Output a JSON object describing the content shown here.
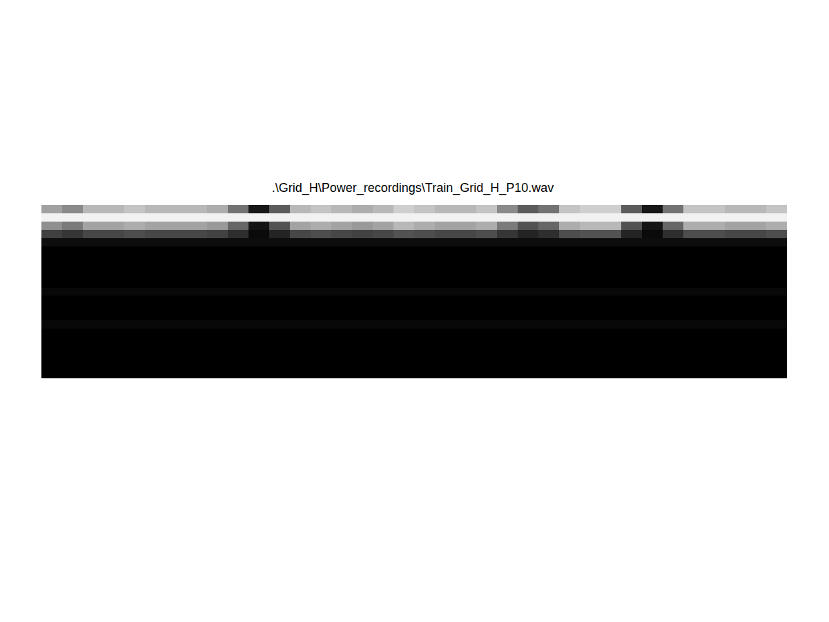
{
  "chart_data": {
    "type": "heatmap",
    "title": ".\\Grid_H\\Power_recordings\\Train_Grid_H_P10.wav",
    "tick_labels": false,
    "zlim": [
      0,
      1
    ],
    "values": [
      [
        0.63,
        0.54,
        0.72,
        0.72,
        0.77,
        0.72,
        0.72,
        0.72,
        0.68,
        0.45,
        0.09,
        0.36,
        0.72,
        0.77,
        0.72,
        0.68,
        0.72,
        0.81,
        0.77,
        0.72,
        0.72,
        0.77,
        0.54,
        0.36,
        0.45,
        0.77,
        0.81,
        0.81,
        0.36,
        0.09,
        0.45,
        0.77,
        0.77,
        0.72,
        0.72,
        0.77
      ],
      [
        0.95,
        0.95,
        0.95,
        0.95,
        0.95,
        0.95,
        0.95,
        0.95,
        0.95,
        0.95,
        0.95,
        0.95,
        0.95,
        0.95,
        0.95,
        0.95,
        0.95,
        0.95,
        0.95,
        0.95,
        0.95,
        0.95,
        0.95,
        0.95,
        0.95,
        0.95,
        0.95,
        0.95,
        0.95,
        0.95,
        0.95,
        0.95,
        0.95,
        0.95,
        0.95,
        0.95
      ],
      [
        0.56,
        0.48,
        0.64,
        0.64,
        0.68,
        0.64,
        0.64,
        0.64,
        0.6,
        0.4,
        0.08,
        0.32,
        0.64,
        0.68,
        0.64,
        0.6,
        0.64,
        0.72,
        0.68,
        0.64,
        0.64,
        0.68,
        0.48,
        0.32,
        0.4,
        0.68,
        0.72,
        0.72,
        0.32,
        0.08,
        0.4,
        0.68,
        0.68,
        0.64,
        0.64,
        0.68
      ],
      [
        0.25,
        0.21,
        0.28,
        0.28,
        0.3,
        0.28,
        0.28,
        0.28,
        0.26,
        0.18,
        0.04,
        0.14,
        0.28,
        0.3,
        0.28,
        0.26,
        0.28,
        0.32,
        0.3,
        0.28,
        0.28,
        0.3,
        0.21,
        0.14,
        0.18,
        0.3,
        0.32,
        0.32,
        0.14,
        0.04,
        0.18,
        0.3,
        0.3,
        0.28,
        0.28,
        0.3
      ],
      [
        0.05,
        0.05,
        0.05,
        0.05,
        0.05,
        0.05,
        0.05,
        0.05,
        0.05,
        0.05,
        0.05,
        0.05,
        0.05,
        0.05,
        0.05,
        0.05,
        0.05,
        0.05,
        0.05,
        0.05,
        0.05,
        0.05,
        0.05,
        0.05,
        0.05,
        0.05,
        0.05,
        0.05,
        0.05,
        0.05,
        0.05,
        0.05,
        0.05,
        0.05,
        0.05,
        0.05
      ],
      [
        0,
        0,
        0,
        0,
        0,
        0,
        0,
        0,
        0,
        0,
        0,
        0,
        0,
        0,
        0,
        0,
        0,
        0,
        0,
        0,
        0,
        0,
        0,
        0,
        0,
        0,
        0,
        0,
        0,
        0,
        0,
        0,
        0,
        0,
        0,
        0
      ],
      [
        0,
        0,
        0,
        0,
        0,
        0,
        0,
        0,
        0,
        0,
        0,
        0,
        0,
        0,
        0,
        0,
        0,
        0,
        0,
        0,
        0,
        0,
        0,
        0,
        0,
        0,
        0,
        0,
        0,
        0,
        0,
        0,
        0,
        0,
        0,
        0
      ],
      [
        0,
        0,
        0,
        0,
        0,
        0,
        0,
        0,
        0,
        0,
        0,
        0,
        0,
        0,
        0,
        0,
        0,
        0,
        0,
        0,
        0,
        0,
        0,
        0,
        0,
        0,
        0,
        0,
        0,
        0,
        0,
        0,
        0,
        0,
        0,
        0
      ],
      [
        0,
        0,
        0,
        0,
        0,
        0,
        0,
        0,
        0,
        0,
        0,
        0,
        0,
        0,
        0,
        0,
        0,
        0,
        0,
        0,
        0,
        0,
        0,
        0,
        0,
        0,
        0,
        0,
        0,
        0,
        0,
        0,
        0,
        0,
        0,
        0
      ],
      [
        0,
        0,
        0,
        0,
        0,
        0,
        0,
        0,
        0,
        0,
        0,
        0,
        0,
        0,
        0,
        0,
        0,
        0,
        0,
        0,
        0,
        0,
        0,
        0,
        0,
        0,
        0,
        0,
        0,
        0,
        0,
        0,
        0,
        0,
        0,
        0
      ],
      [
        0.03,
        0.03,
        0.03,
        0.03,
        0.03,
        0.03,
        0.03,
        0.03,
        0.03,
        0.03,
        0.03,
        0.03,
        0.03,
        0.03,
        0.03,
        0.03,
        0.03,
        0.03,
        0.03,
        0.03,
        0.03,
        0.03,
        0.03,
        0.03,
        0.03,
        0.03,
        0.03,
        0.03,
        0.03,
        0.03,
        0.03,
        0.03,
        0.03,
        0.03,
        0.03,
        0.03
      ],
      [
        0,
        0,
        0,
        0,
        0,
        0,
        0,
        0,
        0,
        0,
        0,
        0,
        0,
        0,
        0,
        0,
        0,
        0,
        0,
        0,
        0,
        0,
        0,
        0,
        0,
        0,
        0,
        0,
        0,
        0,
        0,
        0,
        0,
        0,
        0,
        0
      ],
      [
        0,
        0,
        0,
        0,
        0,
        0,
        0,
        0,
        0,
        0,
        0,
        0,
        0,
        0,
        0,
        0,
        0,
        0,
        0,
        0,
        0,
        0,
        0,
        0,
        0,
        0,
        0,
        0,
        0,
        0,
        0,
        0,
        0,
        0,
        0,
        0
      ],
      [
        0,
        0,
        0,
        0,
        0,
        0,
        0,
        0,
        0,
        0,
        0,
        0,
        0,
        0,
        0,
        0,
        0,
        0,
        0,
        0,
        0,
        0,
        0,
        0,
        0,
        0,
        0,
        0,
        0,
        0,
        0,
        0,
        0,
        0,
        0,
        0
      ],
      [
        0.03,
        0.03,
        0.03,
        0.03,
        0.03,
        0.03,
        0.03,
        0.03,
        0.03,
        0.03,
        0.03,
        0.03,
        0.03,
        0.03,
        0.03,
        0.03,
        0.03,
        0.03,
        0.03,
        0.03,
        0.03,
        0.03,
        0.03,
        0.03,
        0.03,
        0.03,
        0.03,
        0.03,
        0.03,
        0.03,
        0.03,
        0.03,
        0.03,
        0.03,
        0.03,
        0.03
      ],
      [
        0,
        0,
        0,
        0,
        0,
        0,
        0,
        0,
        0,
        0,
        0,
        0,
        0,
        0,
        0,
        0,
        0,
        0,
        0,
        0,
        0,
        0,
        0,
        0,
        0,
        0,
        0,
        0,
        0,
        0,
        0,
        0,
        0,
        0,
        0,
        0
      ],
      [
        0,
        0,
        0,
        0,
        0,
        0,
        0,
        0,
        0,
        0,
        0,
        0,
        0,
        0,
        0,
        0,
        0,
        0,
        0,
        0,
        0,
        0,
        0,
        0,
        0,
        0,
        0,
        0,
        0,
        0,
        0,
        0,
        0,
        0,
        0,
        0
      ],
      [
        0,
        0,
        0,
        0,
        0,
        0,
        0,
        0,
        0,
        0,
        0,
        0,
        0,
        0,
        0,
        0,
        0,
        0,
        0,
        0,
        0,
        0,
        0,
        0,
        0,
        0,
        0,
        0,
        0,
        0,
        0,
        0,
        0,
        0,
        0,
        0
      ],
      [
        0,
        0,
        0,
        0,
        0,
        0,
        0,
        0,
        0,
        0,
        0,
        0,
        0,
        0,
        0,
        0,
        0,
        0,
        0,
        0,
        0,
        0,
        0,
        0,
        0,
        0,
        0,
        0,
        0,
        0,
        0,
        0,
        0,
        0,
        0,
        0
      ],
      [
        0,
        0,
        0,
        0,
        0,
        0,
        0,
        0,
        0,
        0,
        0,
        0,
        0,
        0,
        0,
        0,
        0,
        0,
        0,
        0,
        0,
        0,
        0,
        0,
        0,
        0,
        0,
        0,
        0,
        0,
        0,
        0,
        0,
        0,
        0,
        0
      ],
      [
        0,
        0,
        0,
        0,
        0,
        0,
        0,
        0,
        0,
        0,
        0,
        0,
        0,
        0,
        0,
        0,
        0,
        0,
        0,
        0,
        0,
        0,
        0,
        0,
        0,
        0,
        0,
        0,
        0,
        0,
        0,
        0,
        0,
        0,
        0,
        0
      ]
    ]
  }
}
